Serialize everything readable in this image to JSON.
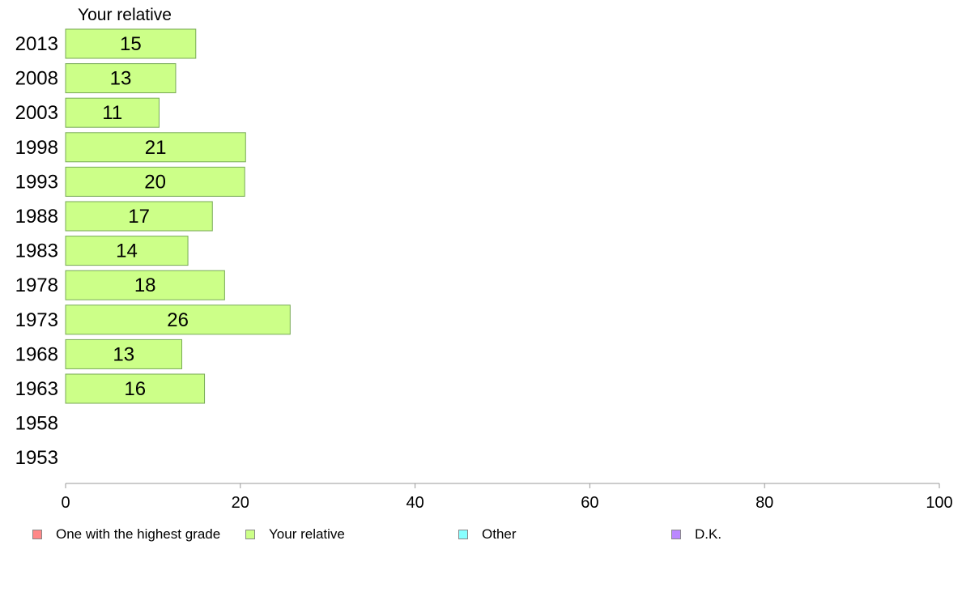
{
  "chart_data": {
    "type": "bar",
    "orientation": "horizontal",
    "series_title": "Your relative",
    "categories": [
      "2013",
      "2008",
      "2003",
      "1998",
      "1993",
      "1988",
      "1983",
      "1978",
      "1973",
      "1968",
      "1963",
      "1958",
      "1953"
    ],
    "series": [
      {
        "name": "Your relative",
        "color": "#ccff88",
        "values": [
          15,
          13,
          11,
          21,
          20,
          17,
          14,
          18,
          26,
          13,
          16,
          null,
          null
        ],
        "display_values": [
          14.9,
          12.6,
          10.7,
          20.6,
          20.5,
          16.8,
          14.0,
          18.2,
          25.7,
          13.3,
          15.9,
          null,
          null
        ]
      }
    ],
    "xlim": [
      0,
      100
    ],
    "xticks": [
      0,
      20,
      40,
      60,
      80,
      100
    ],
    "grid": false,
    "legend": {
      "placement": "bottom",
      "items": [
        {
          "label": "One with the highest grade",
          "color": "#ff8888"
        },
        {
          "label": "Your relative",
          "color": "#ccff88"
        },
        {
          "label": "Other",
          "color": "#88ffff"
        },
        {
          "label": "D.K.",
          "color": "#bb88ff"
        }
      ]
    }
  }
}
